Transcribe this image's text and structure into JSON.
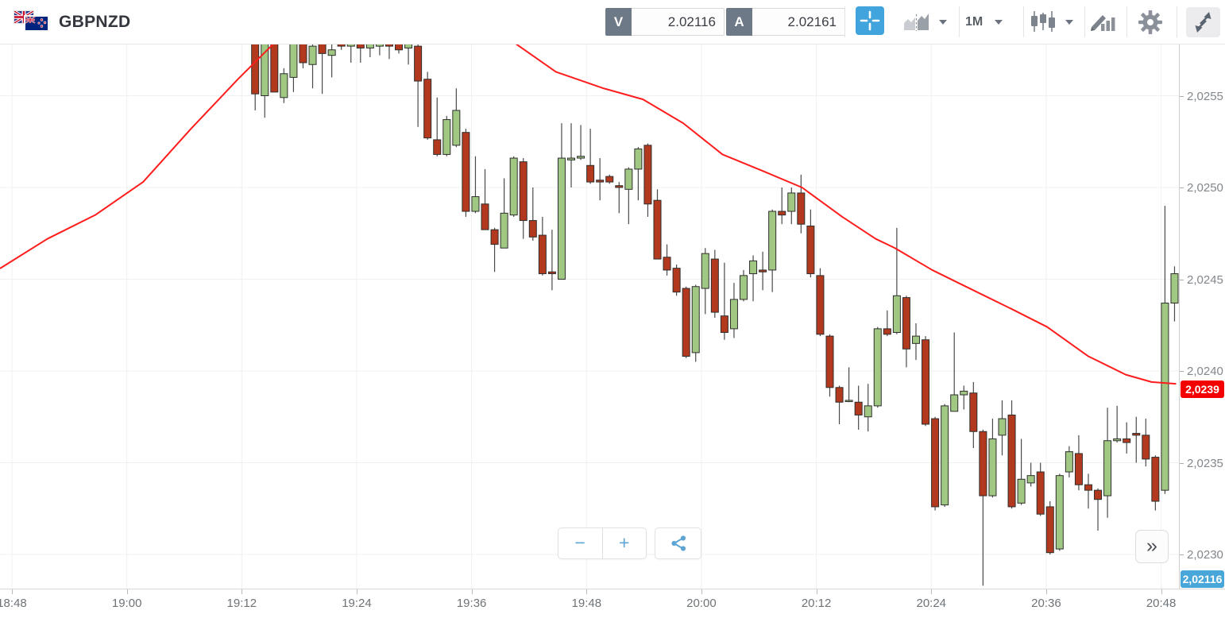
{
  "header": {
    "symbol": "GBPNZD",
    "flags": [
      "uk-flag",
      "nz-flag"
    ],
    "bid": {
      "label": "V",
      "value": "2.02116"
    },
    "ask": {
      "label": "A",
      "value": "2.02161"
    },
    "timeframe": {
      "label": "1M"
    },
    "toolbar_icons": [
      "crosshair-icon",
      "compare-chart-icon",
      "timeframe-dropdown",
      "candlestick-style-icon",
      "drawing-tools-icon",
      "settings-gear-icon",
      "fullscreen-icon"
    ]
  },
  "controls": {
    "zoom_out": "−",
    "zoom_in": "+",
    "share_icon": "share-icon",
    "expand": "»"
  },
  "chart_data": {
    "type": "candlestick",
    "symbol": "GBPNZD",
    "timeframe": "1M",
    "x_ticks": [
      "18:48",
      "19:00",
      "19:12",
      "19:24",
      "19:36",
      "19:48",
      "20:00",
      "20:12",
      "20:24",
      "20:36",
      "20:48"
    ],
    "y_ticks": [
      "2,0255",
      "2,0250",
      "2,0245",
      "2,0240",
      "2,0235",
      "2,0230"
    ],
    "y_tick_values": [
      2.0255,
      2.025,
      2.0245,
      2.024,
      2.0235,
      2.023
    ],
    "ylim": [
      2.02283,
      2.02578
    ],
    "grid": true,
    "price_marker_ma": {
      "label": "2,0239",
      "value": 2.0239,
      "color": "#f40000"
    },
    "price_marker_last": {
      "label": "2,02116",
      "value": 2.02116,
      "color": "#48a7d8"
    },
    "colors": {
      "up": "#a0c883",
      "down": "#b3391e",
      "body_border": "#2e2e2e",
      "wick": "#4a4a4a",
      "ma_line": "#ff1c1c",
      "grid": "#f0f0f0"
    },
    "candles": [
      {
        "t": "19:13",
        "o": 2.02589,
        "h": 2.02589,
        "l": 2.02542,
        "c": 2.02551
      },
      {
        "t": "19:14",
        "o": 2.0255,
        "h": 2.02587,
        "l": 2.02538,
        "c": 2.02587
      },
      {
        "t": "19:15",
        "o": 2.02585,
        "h": 2.02585,
        "l": 2.02552,
        "c": 2.02552
      },
      {
        "t": "19:16",
        "o": 2.02549,
        "h": 2.02565,
        "l": 2.02546,
        "c": 2.02562
      },
      {
        "t": "19:17",
        "o": 2.0256,
        "h": 2.02581,
        "l": 2.02552,
        "c": 2.02581
      },
      {
        "t": "19:18",
        "o": 2.02583,
        "h": 2.02583,
        "l": 2.02565,
        "c": 2.02568
      },
      {
        "t": "19:19",
        "o": 2.02567,
        "h": 2.02581,
        "l": 2.02554,
        "c": 2.02577
      },
      {
        "t": "19:20",
        "o": 2.02581,
        "h": 2.02581,
        "l": 2.02551,
        "c": 2.02573
      },
      {
        "t": "19:21",
        "o": 2.02572,
        "h": 2.02578,
        "l": 2.0256,
        "c": 2.02575
      },
      {
        "t": "19:22",
        "o": 2.02583,
        "h": 2.02583,
        "l": 2.02575,
        "c": 2.02577
      },
      {
        "t": "19:23",
        "o": 2.02577,
        "h": 2.02581,
        "l": 2.02568,
        "c": 2.02581
      },
      {
        "t": "19:24",
        "o": 2.0258,
        "h": 2.02582,
        "l": 2.02568,
        "c": 2.02576
      },
      {
        "t": "19:25",
        "o": 2.02576,
        "h": 2.02585,
        "l": 2.02571,
        "c": 2.0258
      },
      {
        "t": "19:26",
        "o": 2.02577,
        "h": 2.02581,
        "l": 2.02572,
        "c": 2.02581
      },
      {
        "t": "19:27",
        "o": 2.02583,
        "h": 2.02583,
        "l": 2.0257,
        "c": 2.02577
      },
      {
        "t": "19:28",
        "o": 2.0258,
        "h": 2.02583,
        "l": 2.02573,
        "c": 2.02575
      },
      {
        "t": "19:29",
        "o": 2.02576,
        "h": 2.0258,
        "l": 2.02567,
        "c": 2.0258
      },
      {
        "t": "19:30",
        "o": 2.02577,
        "h": 2.02578,
        "l": 2.02533,
        "c": 2.02558
      },
      {
        "t": "19:31",
        "o": 2.02559,
        "h": 2.02563,
        "l": 2.02526,
        "c": 2.02527
      },
      {
        "t": "19:32",
        "o": 2.02526,
        "h": 2.02549,
        "l": 2.02517,
        "c": 2.02518
      },
      {
        "t": "19:33",
        "o": 2.02518,
        "h": 2.02539,
        "l": 2.02517,
        "c": 2.02537
      },
      {
        "t": "19:34",
        "o": 2.02523,
        "h": 2.02554,
        "l": 2.02522,
        "c": 2.02542
      },
      {
        "t": "19:35",
        "o": 2.0253,
        "h": 2.02532,
        "l": 2.02484,
        "c": 2.02487
      },
      {
        "t": "19:36",
        "o": 2.02487,
        "h": 2.02517,
        "l": 2.02486,
        "c": 2.02495
      },
      {
        "t": "19:37",
        "o": 2.02491,
        "h": 2.0251,
        "l": 2.02477,
        "c": 2.02477
      },
      {
        "t": "19:38",
        "o": 2.02477,
        "h": 2.02478,
        "l": 2.02454,
        "c": 2.02469
      },
      {
        "t": "19:39",
        "o": 2.02467,
        "h": 2.02505,
        "l": 2.02467,
        "c": 2.02486
      },
      {
        "t": "19:40",
        "o": 2.02485,
        "h": 2.02517,
        "l": 2.02484,
        "c": 2.02516
      },
      {
        "t": "19:41",
        "o": 2.02514,
        "h": 2.02516,
        "l": 2.02472,
        "c": 2.02482
      },
      {
        "t": "19:42",
        "o": 2.02482,
        "h": 2.025,
        "l": 2.02471,
        "c": 2.02473
      },
      {
        "t": "19:43",
        "o": 2.02474,
        "h": 2.02484,
        "l": 2.02452,
        "c": 2.02453
      },
      {
        "t": "19:44",
        "o": 2.02454,
        "h": 2.02477,
        "l": 2.02444,
        "c": 2.02453
      },
      {
        "t": "19:45",
        "o": 2.0245,
        "h": 2.02535,
        "l": 2.0245,
        "c": 2.02516
      },
      {
        "t": "19:46",
        "o": 2.02515,
        "h": 2.02535,
        "l": 2.025,
        "c": 2.02516
      },
      {
        "t": "19:47",
        "o": 2.02516,
        "h": 2.02534,
        "l": 2.02515,
        "c": 2.02517
      },
      {
        "t": "19:48",
        "o": 2.02512,
        "h": 2.02532,
        "l": 2.02502,
        "c": 2.02503
      },
      {
        "t": "19:49",
        "o": 2.02504,
        "h": 2.02516,
        "l": 2.02493,
        "c": 2.02503
      },
      {
        "t": "19:50",
        "o": 2.02506,
        "h": 2.02507,
        "l": 2.02502,
        "c": 2.02503
      },
      {
        "t": "19:51",
        "o": 2.02501,
        "h": 2.02503,
        "l": 2.02486,
        "c": 2.025
      },
      {
        "t": "19:52",
        "o": 2.02499,
        "h": 2.02511,
        "l": 2.0248,
        "c": 2.0251
      },
      {
        "t": "19:53",
        "o": 2.0251,
        "h": 2.02522,
        "l": 2.02493,
        "c": 2.02521
      },
      {
        "t": "19:54",
        "o": 2.02523,
        "h": 2.02524,
        "l": 2.02484,
        "c": 2.02491
      },
      {
        "t": "19:55",
        "o": 2.02493,
        "h": 2.02499,
        "l": 2.02461,
        "c": 2.02461
      },
      {
        "t": "19:56",
        "o": 2.02462,
        "h": 2.02469,
        "l": 2.02452,
        "c": 2.02455
      },
      {
        "t": "19:57",
        "o": 2.02456,
        "h": 2.02458,
        "l": 2.02441,
        "c": 2.02443
      },
      {
        "t": "19:58",
        "o": 2.02445,
        "h": 2.02446,
        "l": 2.02407,
        "c": 2.02408
      },
      {
        "t": "19:59",
        "o": 2.0241,
        "h": 2.02447,
        "l": 2.02405,
        "c": 2.02446
      },
      {
        "t": "20:00",
        "o": 2.02445,
        "h": 2.02467,
        "l": 2.02431,
        "c": 2.02464
      },
      {
        "t": "20:01",
        "o": 2.02461,
        "h": 2.02466,
        "l": 2.02429,
        "c": 2.02432
      },
      {
        "t": "20:02",
        "o": 2.0243,
        "h": 2.02459,
        "l": 2.02417,
        "c": 2.02421
      },
      {
        "t": "20:03",
        "o": 2.02423,
        "h": 2.02448,
        "l": 2.02418,
        "c": 2.02439
      },
      {
        "t": "20:04",
        "o": 2.02439,
        "h": 2.02455,
        "l": 2.02438,
        "c": 2.02452
      },
      {
        "t": "20:05",
        "o": 2.02453,
        "h": 2.02463,
        "l": 2.02438,
        "c": 2.0246
      },
      {
        "t": "20:06",
        "o": 2.02455,
        "h": 2.02465,
        "l": 2.02444,
        "c": 2.02454
      },
      {
        "t": "20:07",
        "o": 2.02455,
        "h": 2.02488,
        "l": 2.02443,
        "c": 2.02487
      },
      {
        "t": "20:08",
        "o": 2.02487,
        "h": 2.025,
        "l": 2.0248,
        "c": 2.02485
      },
      {
        "t": "20:09",
        "o": 2.02487,
        "h": 2.025,
        "l": 2.0248,
        "c": 2.02497
      },
      {
        "t": "20:10",
        "o": 2.02497,
        "h": 2.02507,
        "l": 2.02475,
        "c": 2.0248
      },
      {
        "t": "20:11",
        "o": 2.02479,
        "h": 2.02488,
        "l": 2.02451,
        "c": 2.02453
      },
      {
        "t": "20:12",
        "o": 2.02452,
        "h": 2.02456,
        "l": 2.02419,
        "c": 2.0242
      },
      {
        "t": "20:13",
        "o": 2.02419,
        "h": 2.0242,
        "l": 2.02386,
        "c": 2.02391
      },
      {
        "t": "20:14",
        "o": 2.02391,
        "h": 2.02392,
        "l": 2.02371,
        "c": 2.02383
      },
      {
        "t": "20:15",
        "o": 2.02384,
        "h": 2.02402,
        "l": 2.02383,
        "c": 2.02384
      },
      {
        "t": "20:16",
        "o": 2.02383,
        "h": 2.02392,
        "l": 2.02368,
        "c": 2.02376
      },
      {
        "t": "20:17",
        "o": 2.02375,
        "h": 2.02393,
        "l": 2.02367,
        "c": 2.02381
      },
      {
        "t": "20:18",
        "o": 2.02381,
        "h": 2.02424,
        "l": 2.0238,
        "c": 2.02423
      },
      {
        "t": "20:19",
        "o": 2.02423,
        "h": 2.02433,
        "l": 2.02419,
        "c": 2.0242
      },
      {
        "t": "20:20",
        "o": 2.02421,
        "h": 2.02478,
        "l": 2.0242,
        "c": 2.02441
      },
      {
        "t": "20:21",
        "o": 2.0244,
        "h": 2.02441,
        "l": 2.02402,
        "c": 2.02412
      },
      {
        "t": "20:22",
        "o": 2.02415,
        "h": 2.02426,
        "l": 2.02406,
        "c": 2.02419
      },
      {
        "t": "20:23",
        "o": 2.02417,
        "h": 2.02419,
        "l": 2.0237,
        "c": 2.02371
      },
      {
        "t": "20:24",
        "o": 2.02374,
        "h": 2.02375,
        "l": 2.02324,
        "c": 2.02326
      },
      {
        "t": "20:25",
        "o": 2.02327,
        "h": 2.02382,
        "l": 2.02326,
        "c": 2.02381
      },
      {
        "t": "20:26",
        "o": 2.02378,
        "h": 2.02421,
        "l": 2.02378,
        "c": 2.02387
      },
      {
        "t": "20:27",
        "o": 2.02387,
        "h": 2.02392,
        "l": 2.02379,
        "c": 2.02389
      },
      {
        "t": "20:28",
        "o": 2.02388,
        "h": 2.02394,
        "l": 2.02358,
        "c": 2.02367
      },
      {
        "t": "20:29",
        "o": 2.02367,
        "h": 2.02368,
        "l": 2.02283,
        "c": 2.02332
      },
      {
        "t": "20:30",
        "o": 2.02332,
        "h": 2.02374,
        "l": 2.02331,
        "c": 2.02363
      },
      {
        "t": "20:31",
        "o": 2.02365,
        "h": 2.02384,
        "l": 2.02354,
        "c": 2.02374
      },
      {
        "t": "20:32",
        "o": 2.02376,
        "h": 2.02384,
        "l": 2.02325,
        "c": 2.02326
      },
      {
        "t": "20:33",
        "o": 2.02328,
        "h": 2.02363,
        "l": 2.02327,
        "c": 2.02341
      },
      {
        "t": "20:34",
        "o": 2.02339,
        "h": 2.0235,
        "l": 2.02337,
        "c": 2.02343
      },
      {
        "t": "20:35",
        "o": 2.02345,
        "h": 2.0235,
        "l": 2.02321,
        "c": 2.02322
      },
      {
        "t": "20:36",
        "o": 2.02326,
        "h": 2.02329,
        "l": 2.023,
        "c": 2.02301
      },
      {
        "t": "20:37",
        "o": 2.02303,
        "h": 2.02344,
        "l": 2.02302,
        "c": 2.02343
      },
      {
        "t": "20:38",
        "o": 2.02345,
        "h": 2.02359,
        "l": 2.02342,
        "c": 2.02356
      },
      {
        "t": "20:39",
        "o": 2.02355,
        "h": 2.02365,
        "l": 2.02335,
        "c": 2.02338
      },
      {
        "t": "20:40",
        "o": 2.02338,
        "h": 2.02344,
        "l": 2.02325,
        "c": 2.02335
      },
      {
        "t": "20:41",
        "o": 2.02335,
        "h": 2.02336,
        "l": 2.02313,
        "c": 2.0233
      },
      {
        "t": "20:42",
        "o": 2.02332,
        "h": 2.0238,
        "l": 2.0232,
        "c": 2.02362
      },
      {
        "t": "20:43",
        "o": 2.02362,
        "h": 2.02381,
        "l": 2.02361,
        "c": 2.02363
      },
      {
        "t": "20:44",
        "o": 2.02363,
        "h": 2.02372,
        "l": 2.02355,
        "c": 2.02361
      },
      {
        "t": "20:45",
        "o": 2.02366,
        "h": 2.02375,
        "l": 2.0235,
        "c": 2.02365
      },
      {
        "t": "20:46",
        "o": 2.02365,
        "h": 2.02374,
        "l": 2.02348,
        "c": 2.02352
      },
      {
        "t": "20:47",
        "o": 2.02353,
        "h": 2.02354,
        "l": 2.02324,
        "c": 2.02329
      },
      {
        "t": "20:48",
        "o": 2.02335,
        "h": 2.0249,
        "l": 2.02333,
        "c": 2.02437
      },
      {
        "t": "20:49",
        "o": 2.02437,
        "h": 2.02457,
        "l": 2.02427,
        "c": 2.02453
      }
    ],
    "ma_line": [
      {
        "m": -1.2,
        "v": 2.02456
      },
      {
        "m": 3.7,
        "v": 2.02472
      },
      {
        "m": 8.7,
        "v": 2.02485
      },
      {
        "m": 13.7,
        "v": 2.02503
      },
      {
        "m": 18.7,
        "v": 2.02532
      },
      {
        "m": 23.6,
        "v": 2.02559
      },
      {
        "m": 28.6,
        "v": 2.02585
      },
      {
        "m": 33.6,
        "v": 2.02602
      },
      {
        "m": 38.6,
        "v": 2.02612
      },
      {
        "m": 43.6,
        "v": 2.0261
      },
      {
        "m": 48.5,
        "v": 2.02596
      },
      {
        "m": 52.7,
        "v": 2.02578
      },
      {
        "m": 56.8,
        "v": 2.02563
      },
      {
        "m": 61.8,
        "v": 2.02554
      },
      {
        "m": 65.9,
        "v": 2.02548
      },
      {
        "m": 70.1,
        "v": 2.02535
      },
      {
        "m": 74.2,
        "v": 2.02518
      },
      {
        "m": 78.4,
        "v": 2.02509
      },
      {
        "m": 82.5,
        "v": 2.025
      },
      {
        "m": 86.7,
        "v": 2.02484
      },
      {
        "m": 90.2,
        "v": 2.02472
      },
      {
        "m": 92.2,
        "v": 2.02467
      },
      {
        "m": 96.1,
        "v": 2.02455
      },
      {
        "m": 100.0,
        "v": 2.02445
      },
      {
        "m": 104.3,
        "v": 2.02434
      },
      {
        "m": 108.1,
        "v": 2.02424
      },
      {
        "m": 112.4,
        "v": 2.02408
      },
      {
        "m": 116.3,
        "v": 2.02398
      },
      {
        "m": 119.0,
        "v": 2.02394
      },
      {
        "m": 121.5,
        "v": 2.02393
      }
    ]
  }
}
